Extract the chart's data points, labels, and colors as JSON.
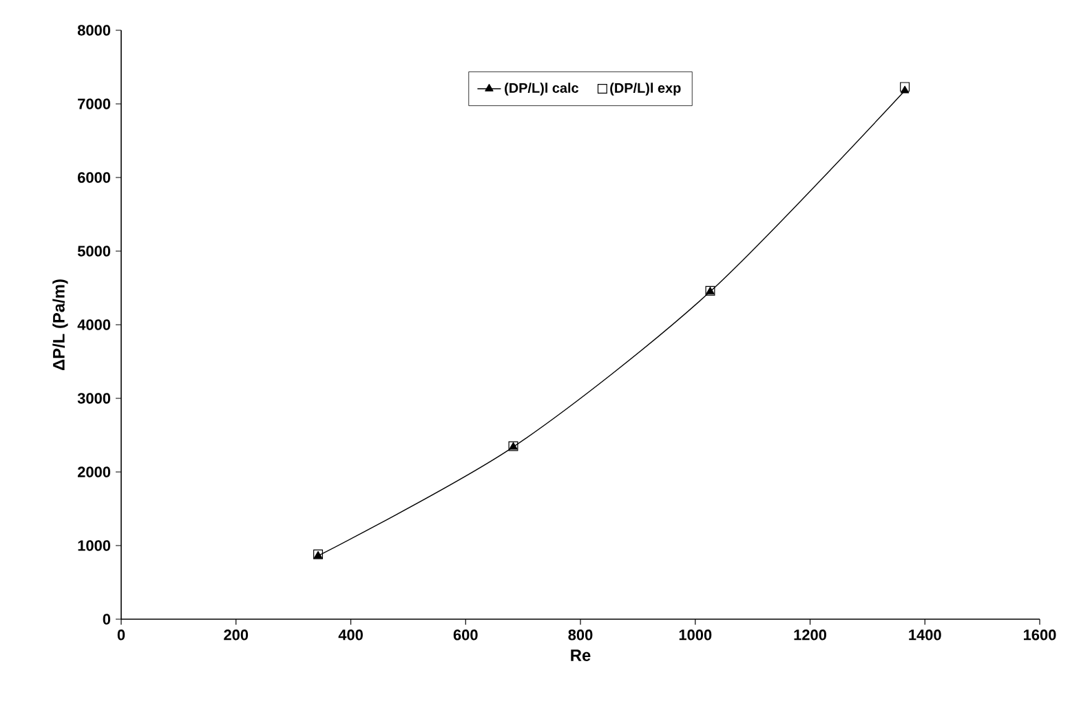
{
  "chart_data": {
    "type": "line",
    "xlabel": "Re",
    "ylabel": "ΔP/L (Pa/m)",
    "series": [
      {
        "name": "(DP/L)l calc",
        "color": "#000000",
        "marker": "triangle",
        "x": [
          343,
          683,
          1026,
          1365
        ],
        "values": [
          860,
          2340,
          4450,
          7180
        ]
      },
      {
        "name": "(DP/L)l exp",
        "type": "scatter",
        "color": "#000000",
        "marker": "square",
        "x": [
          343,
          683,
          1026,
          1365
        ],
        "values": [
          880,
          2350,
          4460,
          7230
        ]
      }
    ],
    "xlim": [
      0,
      1600
    ],
    "xticks": [
      0,
      200,
      400,
      600,
      800,
      1000,
      1200,
      1400,
      1600
    ],
    "ylim": [
      0,
      8000
    ],
    "yticks": [
      0,
      1000,
      2000,
      3000,
      4000,
      5000,
      6000,
      7000,
      8000
    ],
    "grid": false,
    "legend": "top"
  }
}
